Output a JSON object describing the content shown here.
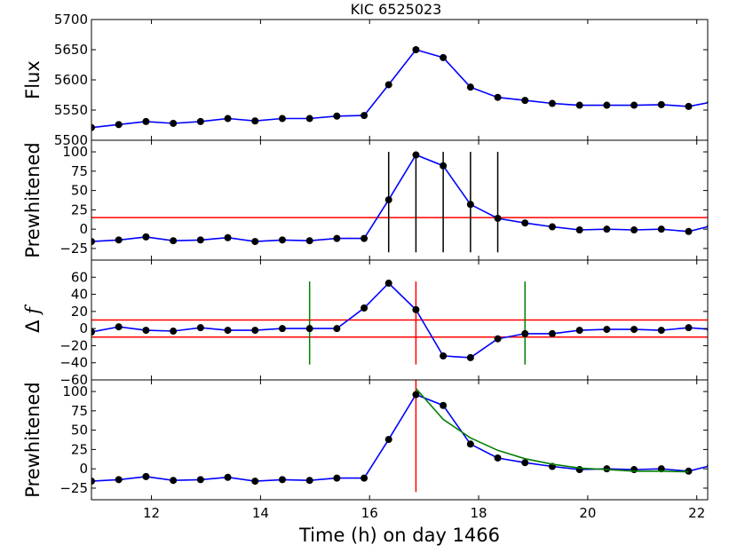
{
  "chart_data": {
    "type": "line",
    "title": "KIC 6525023",
    "xlabel": "Time (h) on day 1466",
    "xlim": [
      10.9,
      22.2
    ],
    "xticks": [
      12,
      14,
      16,
      18,
      20,
      22
    ],
    "x": [
      10.9,
      11.4,
      11.9,
      12.4,
      12.9,
      13.4,
      13.9,
      14.4,
      14.9,
      15.4,
      15.9,
      16.35,
      16.85,
      17.35,
      17.85,
      18.35,
      18.85,
      19.35,
      19.85,
      20.35,
      20.85,
      21.35,
      21.85,
      22.25
    ],
    "colors": {
      "data": "#0000ff",
      "marker": "#000000",
      "red": "#ff0000",
      "green": "#008000",
      "black": "#000000"
    },
    "panels": [
      {
        "id": "flux",
        "ylabel": "Flux",
        "ylim": [
          5500,
          5700
        ],
        "yticks": [
          5500,
          5550,
          5600,
          5650,
          5700
        ],
        "series": [
          {
            "name": "flux",
            "values": [
              5521,
              5526,
              5531,
              5528,
              5531,
              5536,
              5532,
              5536,
              5536,
              5540,
              5541,
              5592,
              5650,
              5637,
              5588,
              5571,
              5566,
              5561,
              5558,
              5558,
              5558,
              5559,
              5556,
              5563
            ]
          }
        ]
      },
      {
        "id": "prewhitened",
        "ylabel": "Prewhitened",
        "ylim": [
          -40,
          115
        ],
        "yticks": [
          -25,
          0,
          25,
          50,
          75,
          100
        ],
        "series": [
          {
            "name": "prewhitened",
            "values": [
              -16,
              -14,
              -10,
              -15,
              -14,
              -11,
              -16,
              -14,
              -15,
              -12,
              -12,
              38,
              96,
              82,
              32,
              14,
              8,
              3,
              -1,
              0,
              -1,
              0,
              -3,
              4
            ]
          }
        ],
        "hlines": [
          {
            "y": 15,
            "color": "red"
          }
        ],
        "vsegments": [
          {
            "x": 16.35,
            "y0": -30,
            "y1": 100,
            "color": "black"
          },
          {
            "x": 16.85,
            "y0": -30,
            "y1": 100,
            "color": "black"
          },
          {
            "x": 17.35,
            "y0": -30,
            "y1": 100,
            "color": "black"
          },
          {
            "x": 17.85,
            "y0": -30,
            "y1": 100,
            "color": "black"
          },
          {
            "x": 18.35,
            "y0": -30,
            "y1": 100,
            "color": "black"
          }
        ]
      },
      {
        "id": "delta-f",
        "ylabel": "Δ f",
        "ylim": [
          -60,
          80
        ],
        "yticks": [
          -60,
          -40,
          -20,
          0,
          20,
          40,
          60
        ],
        "series": [
          {
            "name": "delta-f",
            "values": [
              -4,
              2,
              -2,
              -3,
              1,
              -2,
              -2,
              0,
              0,
              0,
              24,
              53,
              22,
              -32,
              -34,
              -12,
              -6,
              -6,
              -2,
              -1,
              -1,
              -2,
              1,
              -1
            ]
          }
        ],
        "hlines": [
          {
            "y": 10,
            "color": "red"
          },
          {
            "y": -10,
            "color": "red"
          }
        ],
        "vsegments": [
          {
            "x": 14.9,
            "y0": -42,
            "y1": 55,
            "color": "green"
          },
          {
            "x": 16.85,
            "y0": -42,
            "y1": 55,
            "color": "red"
          },
          {
            "x": 18.85,
            "y0": -42,
            "y1": 55,
            "color": "green"
          }
        ]
      },
      {
        "id": "prewhitened-fit",
        "ylabel": "Prewhitened",
        "ylim": [
          -40,
          115
        ],
        "yticks": [
          -25,
          0,
          25,
          50,
          75,
          100
        ],
        "series": [
          {
            "name": "prewhitened",
            "values": [
              -16,
              -14,
              -10,
              -15,
              -14,
              -11,
              -16,
              -14,
              -15,
              -12,
              -12,
              38,
              96,
              82,
              32,
              14,
              8,
              3,
              -1,
              0,
              -1,
              0,
              -3,
              4
            ]
          }
        ],
        "fit": {
          "name": "decay-fit",
          "x": [
            16.85,
            17.35,
            17.85,
            18.35,
            18.85,
            19.35,
            19.85,
            20.35,
            20.85,
            21.35,
            21.85
          ],
          "values": [
            104,
            64,
            40,
            24,
            13,
            6,
            1,
            -1,
            -3,
            -3,
            -4
          ]
        },
        "vsegments": [
          {
            "x": 16.85,
            "y0": -30,
            "y1": 115,
            "color": "red"
          }
        ]
      }
    ]
  }
}
